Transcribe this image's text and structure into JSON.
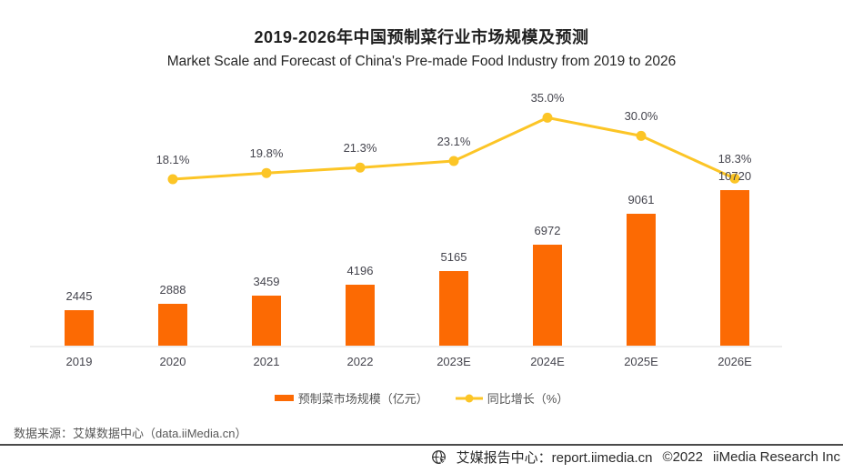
{
  "header": {
    "title": "2019-2026年中国预制菜行业市场规模及预测",
    "subtitle": "Market Scale and Forecast of China's Pre-made Food Industry from 2019 to 2026"
  },
  "chart_data": {
    "type": "bar+line",
    "categories": [
      "2019",
      "2020",
      "2021",
      "2022",
      "2023E",
      "2024E",
      "2025E",
      "2026E"
    ],
    "series": [
      {
        "name": "预制菜市场规模（亿元）",
        "type": "bar",
        "color": "#fc6a03",
        "values": [
          2445,
          2888,
          3459,
          4196,
          5165,
          6972,
          9061,
          10720
        ]
      },
      {
        "name": "同比增长（%）",
        "type": "line",
        "color": "#fcc526",
        "values": [
          null,
          18.1,
          19.8,
          21.3,
          23.1,
          35.0,
          30.0,
          18.3
        ],
        "labels": [
          "",
          "18.1%",
          "19.8%",
          "21.3%",
          "23.1%",
          "35.0%",
          "30.0%",
          "18.3%"
        ]
      }
    ],
    "title": "2019-2026年中国预制菜行业市场规模及预测",
    "subtitle": "Market Scale and Forecast of China's Pre-made Food Industry from 2019 to 2026",
    "xlabel": "",
    "ylabel": "",
    "grid": false,
    "legend_position": "bottom",
    "value_labels_shown": true
  },
  "footer": {
    "source": "数据来源：艾媒数据中心（data.iiMedia.cn）",
    "brand_label": "艾媒报告中心：report.iimedia.cn",
    "copyright": "©2022",
    "company": "iiMedia Research Inc",
    "icon": "globe-cursor-icon"
  },
  "colors": {
    "bar": "#fc6a03",
    "line": "#fcc526",
    "axis_line": "#ededed",
    "divider": "#4a4a4a",
    "label_text": "#45454e",
    "footer_text": "#2b2b2b"
  }
}
